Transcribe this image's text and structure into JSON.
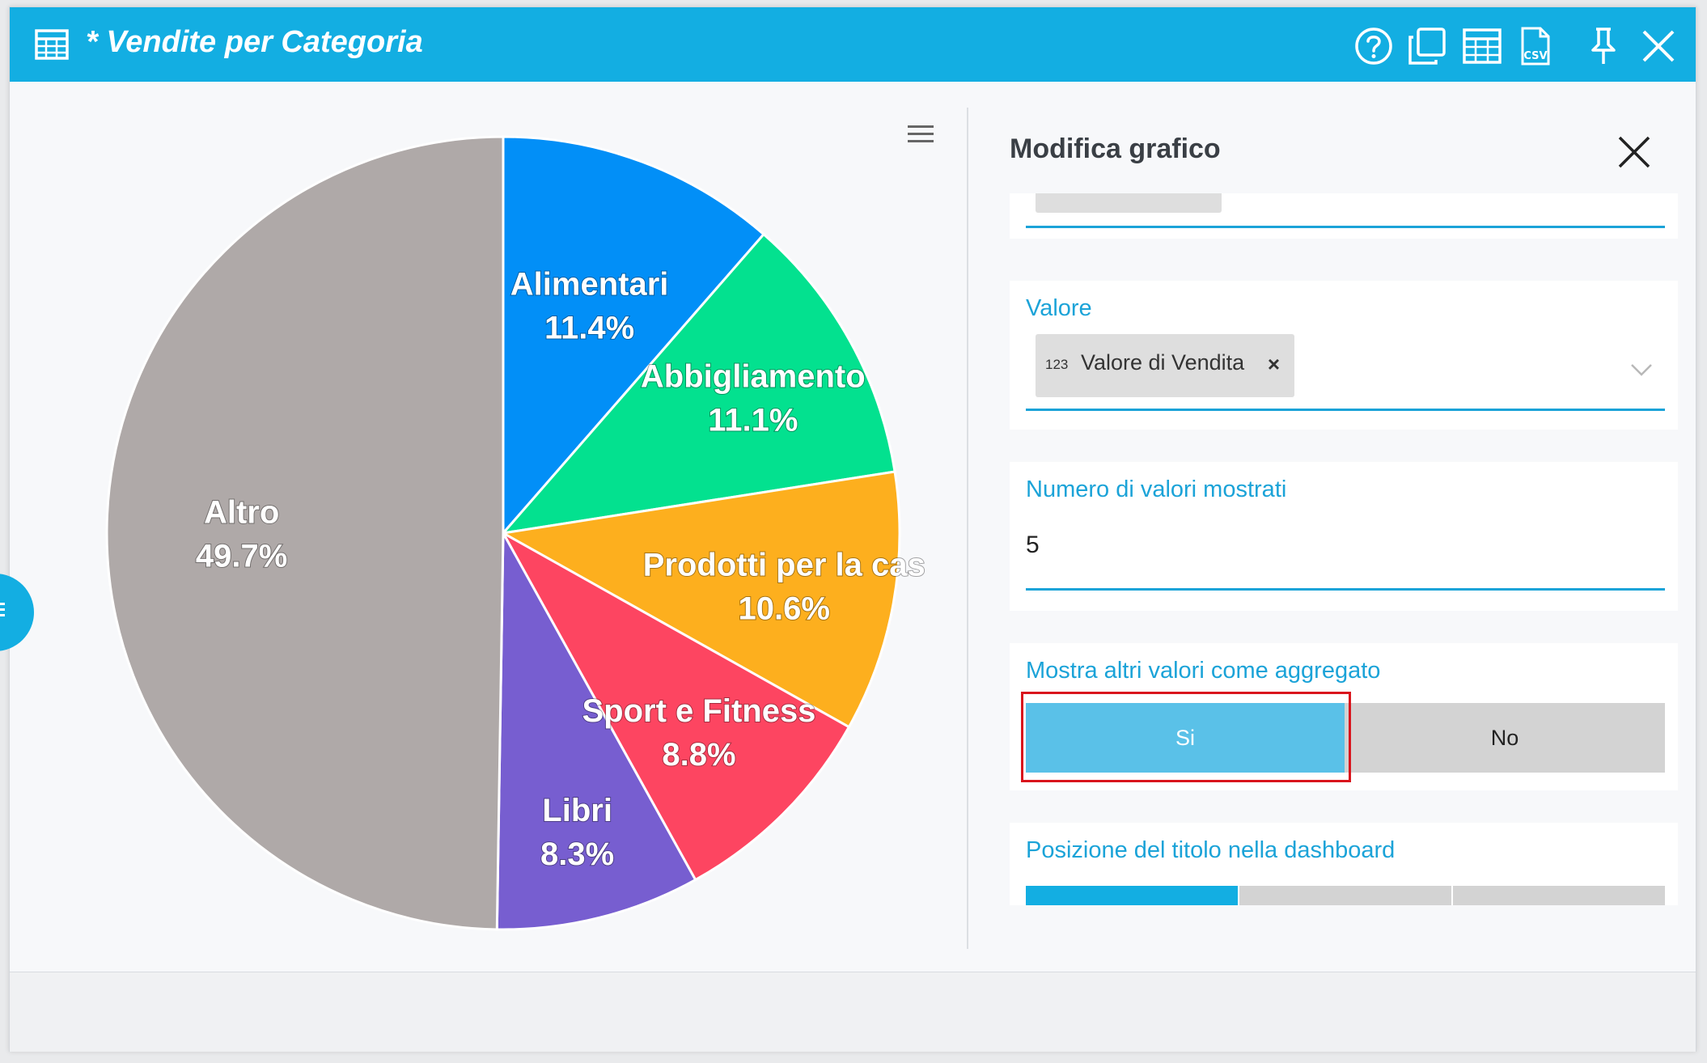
{
  "window": {
    "title": "* Vendite per Categoria",
    "accent_color": "#13aee2",
    "toolbar_icons": [
      "help-icon",
      "duplicate-icon",
      "table-icon",
      "csv-icon",
      "pin-icon",
      "close-icon"
    ],
    "csv_label": "CSV"
  },
  "chart_data": {
    "type": "pie",
    "categories": [
      "Alimentari",
      "Abbigliamento",
      "Prodotti per la cas",
      "Sport e Fitness",
      "Libri",
      "Altro"
    ],
    "values": [
      11.4,
      11.1,
      10.6,
      8.8,
      8.3,
      49.7
    ],
    "labels": [
      "11.4%",
      "11.1%",
      "10.6%",
      "8.8%",
      "8.3%",
      "49.7%"
    ],
    "colors": [
      "#028ff7",
      "#03e18f",
      "#fdaf1e",
      "#fd4561",
      "#775ed0",
      "#afa9a8"
    ],
    "title": "",
    "legend": "none"
  },
  "panel": {
    "title": "Modifica grafico",
    "valore": {
      "label": "Valore",
      "chip_type": "123",
      "chip_text": "Valore di Vendita",
      "chip_remove": "×"
    },
    "numero": {
      "label": "Numero di valori mostrati",
      "value": "5"
    },
    "aggregato": {
      "label": "Mostra altri valori come aggregato",
      "yes": "Si",
      "no": "No",
      "selected": "Si"
    },
    "posizione": {
      "label": "Posizione del titolo nella dashboard"
    }
  }
}
